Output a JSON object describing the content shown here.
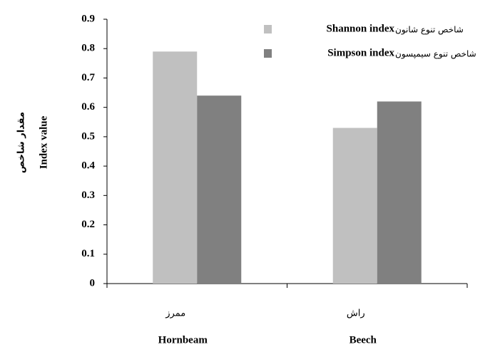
{
  "chart_data": {
    "type": "bar",
    "ylabel": "Index value",
    "ylabel_fa": "مقدار شاخص",
    "categories": [
      "Hornbeam",
      "Beech"
    ],
    "categories_fa": [
      "ممرز",
      "راش"
    ],
    "series": [
      {
        "name": "Shannon index",
        "name_fa": "شاخص تنوع شانون",
        "color": "#c0c0c0",
        "values": [
          0.79,
          0.53
        ]
      },
      {
        "name": "Simpson index",
        "name_fa": "شاخص تنوع سیمپسون",
        "color": "#808080",
        "values": [
          0.64,
          0.62
        ]
      }
    ],
    "ylim": [
      0,
      0.9
    ],
    "yticks": [
      0,
      0.1,
      0.2,
      0.3,
      0.4,
      0.5,
      0.6,
      0.7,
      0.8,
      0.9
    ],
    "grid": false
  }
}
